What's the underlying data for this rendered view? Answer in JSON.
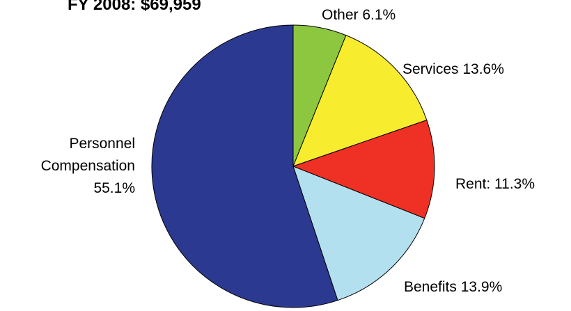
{
  "chart_data": {
    "type": "pie",
    "title": "FY 2008: $69,959",
    "start": "top",
    "direction": "clockwise",
    "slices": [
      {
        "name": "Other",
        "value": 6.1,
        "label_lines": [
          "Other 6.1%"
        ],
        "color": "#8dc63f"
      },
      {
        "name": "Services",
        "value": 13.6,
        "label_lines": [
          "Services 13.6%"
        ],
        "color": "#f7ec2e"
      },
      {
        "name": "Rent",
        "value": 11.3,
        "label_lines": [
          "Rent: 11.3%"
        ],
        "color": "#ee3124"
      },
      {
        "name": "Benefits",
        "value": 13.9,
        "label_lines": [
          "Benefits 13.9%"
        ],
        "color": "#b3e0ef"
      },
      {
        "name": "Personnel Compensation",
        "value": 55.1,
        "label_lines": [
          "Personnel",
          "Compensation",
          "55.1%"
        ],
        "color": "#2b3990"
      }
    ]
  }
}
